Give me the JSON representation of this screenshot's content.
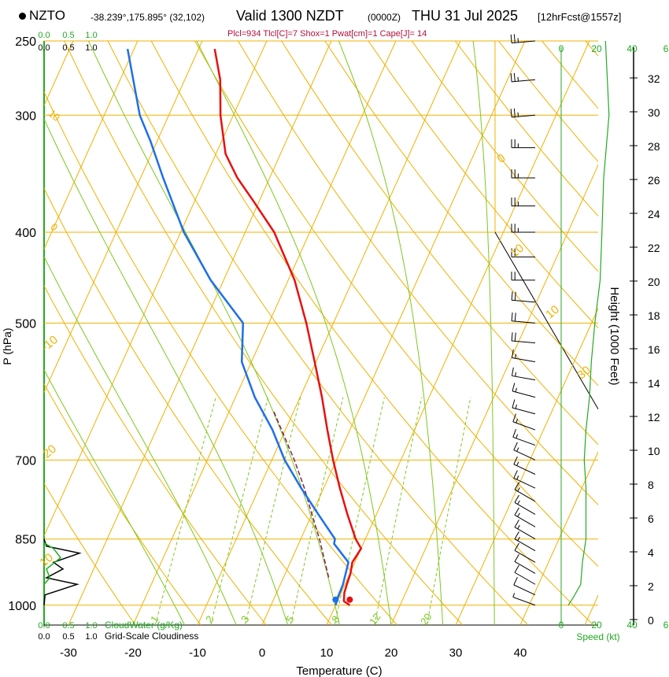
{
  "header": {
    "station": "NZTO",
    "location": "-38.239°,175.895° (32,102)",
    "valid": "Valid 1300 NZDT",
    "utc": "(0000Z)",
    "date": "THU 31 Jul 2025",
    "forecast": "[12hrFcst@1557z]",
    "params": "Plcl=934 Tlcl[C]=7 Shox=1 Pwat[cm]=1 Cape[J]= 14"
  },
  "colors": {
    "temp": "#e81010",
    "dew": "#1e6fe8",
    "isotherm": "#f0b000",
    "mixing": "#7cc81e",
    "green": "#22aa22",
    "params": "#b0103c"
  },
  "chart_data": {
    "type": "line",
    "title": "Skew-T sounding NZTO",
    "xlabel": "Temperature (C)",
    "ylabel": "P (hPa)",
    "y2label": "Height (1000 Feet)",
    "x_ticks": [
      "-30",
      "-20",
      "-10",
      "0",
      "10",
      "20",
      "30",
      "40"
    ],
    "x_tick_values": [
      -30,
      -20,
      -10,
      0,
      10,
      20,
      30,
      40
    ],
    "p_ticks": [
      "250",
      "300",
      "400",
      "500",
      "700",
      "850",
      "1000"
    ],
    "p_tick_values": [
      250,
      300,
      400,
      500,
      700,
      850,
      1000
    ],
    "height_ticks": [
      "0",
      "2",
      "4",
      "6",
      "8",
      "10",
      "12",
      "14",
      "16",
      "18",
      "20",
      "22",
      "24",
      "26",
      "28",
      "30",
      "32"
    ],
    "height_tick_values": [
      0,
      2,
      4,
      6,
      8,
      10,
      12,
      14,
      16,
      18,
      20,
      22,
      24,
      26,
      28,
      30,
      32
    ],
    "cloud_axis_labels": [
      "0.0",
      "0.5",
      "1.0"
    ],
    "cloud_water_label": "CloudWater (g/Kg)",
    "cloudiness_label": "Grid-Scale Cloudiness",
    "speed_label": "Speed (kt)",
    "speed_ticks": [
      "0",
      "20",
      "40"
    ],
    "rh_tick": "6",
    "mixing_ratio_labels": [
      "1",
      "2",
      "3",
      "5",
      "8",
      "12",
      "20"
    ],
    "isotherm_labels": [
      "0",
      "10",
      "10",
      "30",
      "-10",
      "20",
      "10"
    ],
    "temperature": [
      {
        "p": 1000,
        "t": 12.2
      },
      {
        "p": 990,
        "t": 11.0
      },
      {
        "p": 970,
        "t": 10.5
      },
      {
        "p": 950,
        "t": 10.3
      },
      {
        "p": 925,
        "t": 10.1
      },
      {
        "p": 900,
        "t": 9.6
      },
      {
        "p": 870,
        "t": 10.0
      },
      {
        "p": 850,
        "t": 8.5
      },
      {
        "p": 800,
        "t": 5.5
      },
      {
        "p": 750,
        "t": 2.5
      },
      {
        "p": 700,
        "t": -0.5
      },
      {
        "p": 650,
        "t": -3.5
      },
      {
        "p": 600,
        "t": -6.6
      },
      {
        "p": 550,
        "t": -10.2
      },
      {
        "p": 500,
        "t": -14.2
      },
      {
        "p": 450,
        "t": -19.0
      },
      {
        "p": 400,
        "t": -25.5
      },
      {
        "p": 370,
        "t": -31.0
      },
      {
        "p": 350,
        "t": -35.0
      },
      {
        "p": 330,
        "t": -38.5
      },
      {
        "p": 300,
        "t": -42.0
      },
      {
        "p": 275,
        "t": -44.5
      },
      {
        "p": 255,
        "t": -47.5
      }
    ],
    "dewpoint": [
      {
        "p": 1000,
        "t": 10.0
      },
      {
        "p": 980,
        "t": 9.8
      },
      {
        "p": 950,
        "t": 9.7
      },
      {
        "p": 900,
        "t": 9.0
      },
      {
        "p": 860,
        "t": 5.5
      },
      {
        "p": 850,
        "t": 5.3
      },
      {
        "p": 800,
        "t": 1.0
      },
      {
        "p": 750,
        "t": -3.5
      },
      {
        "p": 700,
        "t": -8.0
      },
      {
        "p": 650,
        "t": -12.0
      },
      {
        "p": 600,
        "t": -17.0
      },
      {
        "p": 550,
        "t": -21.5
      },
      {
        "p": 500,
        "t": -24.0
      },
      {
        "p": 450,
        "t": -32.0
      },
      {
        "p": 400,
        "t": -39.5
      },
      {
        "p": 350,
        "t": -46.5
      },
      {
        "p": 320,
        "t": -51.0
      },
      {
        "p": 300,
        "t": -54.5
      },
      {
        "p": 255,
        "t": -61.0
      }
    ],
    "parcel": [
      {
        "p": 934,
        "t": 7.0
      },
      {
        "p": 850,
        "t": 2.9
      },
      {
        "p": 800,
        "t": 0.0
      },
      {
        "p": 750,
        "t": -3.0
      },
      {
        "p": 700,
        "t": -6.5
      },
      {
        "p": 650,
        "t": -10.6
      },
      {
        "p": 620,
        "t": -13.2
      }
    ],
    "cloudiness": [
      {
        "p": 1000,
        "v": 0.0
      },
      {
        "p": 975,
        "v": 0.02
      },
      {
        "p": 950,
        "v": 0.7
      },
      {
        "p": 935,
        "v": 0.05
      },
      {
        "p": 915,
        "v": 0.4
      },
      {
        "p": 900,
        "v": 0.2
      },
      {
        "p": 880,
        "v": 0.75
      },
      {
        "p": 865,
        "v": 0.05
      },
      {
        "p": 850,
        "v": 0.0
      }
    ],
    "cloud_water": [
      {
        "p": 950,
        "v": 0.0
      },
      {
        "p": 935,
        "v": 0.12
      },
      {
        "p": 915,
        "v": 0.05
      },
      {
        "p": 890,
        "v": 0.35
      },
      {
        "p": 870,
        "v": 0.2
      },
      {
        "p": 858,
        "v": 0.0
      }
    ],
    "wind_speed": [
      {
        "p": 1000,
        "s": 4
      },
      {
        "p": 980,
        "s": 7
      },
      {
        "p": 950,
        "s": 11
      },
      {
        "p": 900,
        "s": 12
      },
      {
        "p": 850,
        "s": 14
      },
      {
        "p": 800,
        "s": 14
      },
      {
        "p": 750,
        "s": 14
      },
      {
        "p": 700,
        "s": 13
      },
      {
        "p": 650,
        "s": 14
      },
      {
        "p": 600,
        "s": 16
      },
      {
        "p": 550,
        "s": 17
      },
      {
        "p": 500,
        "s": 19
      },
      {
        "p": 450,
        "s": 22
      },
      {
        "p": 400,
        "s": 23
      },
      {
        "p": 350,
        "s": 24
      },
      {
        "p": 300,
        "s": 27
      },
      {
        "p": 250,
        "s": 25
      }
    ],
    "rh": [
      {
        "p": 1000,
        "v": 0.9
      },
      {
        "p": 950,
        "v": 1.0
      },
      {
        "p": 900,
        "v": 1.05
      },
      {
        "p": 850,
        "v": 0.9
      },
      {
        "p": 800,
        "v": 0.85
      },
      {
        "p": 700,
        "v": 0.8
      },
      {
        "p": 650,
        "v": 0.85
      },
      {
        "p": 600,
        "v": 0.9
      },
      {
        "p": 500,
        "v": 1.0
      },
      {
        "p": 400,
        "v": 1.25
      },
      {
        "p": 350,
        "v": 1.3
      },
      {
        "p": 300,
        "v": 1.3
      },
      {
        "p": 250,
        "v": 1.3
      }
    ],
    "barb_levels": [
      {
        "p": 1000,
        "dir": 290,
        "spd": 5
      },
      {
        "p": 975,
        "dir": 295,
        "spd": 10
      },
      {
        "p": 950,
        "dir": 300,
        "spd": 10
      },
      {
        "p": 925,
        "dir": 300,
        "spd": 10
      },
      {
        "p": 900,
        "dir": 300,
        "spd": 10
      },
      {
        "p": 875,
        "dir": 300,
        "spd": 15
      },
      {
        "p": 850,
        "dir": 300,
        "spd": 15
      },
      {
        "p": 825,
        "dir": 300,
        "spd": 15
      },
      {
        "p": 800,
        "dir": 300,
        "spd": 15
      },
      {
        "p": 775,
        "dir": 300,
        "spd": 15
      },
      {
        "p": 750,
        "dir": 295,
        "spd": 15
      },
      {
        "p": 725,
        "dir": 295,
        "spd": 15
      },
      {
        "p": 700,
        "dir": 295,
        "spd": 15
      },
      {
        "p": 675,
        "dir": 290,
        "spd": 15
      },
      {
        "p": 650,
        "dir": 290,
        "spd": 15
      },
      {
        "p": 625,
        "dir": 285,
        "spd": 15
      },
      {
        "p": 600,
        "dir": 285,
        "spd": 15
      },
      {
        "p": 575,
        "dir": 280,
        "spd": 15
      },
      {
        "p": 550,
        "dir": 280,
        "spd": 15
      },
      {
        "p": 525,
        "dir": 275,
        "spd": 20
      },
      {
        "p": 500,
        "dir": 275,
        "spd": 20
      },
      {
        "p": 475,
        "dir": 275,
        "spd": 20
      },
      {
        "p": 450,
        "dir": 270,
        "spd": 20
      },
      {
        "p": 425,
        "dir": 270,
        "spd": 20
      },
      {
        "p": 400,
        "dir": 270,
        "spd": 25
      },
      {
        "p": 375,
        "dir": 270,
        "spd": 25
      },
      {
        "p": 350,
        "dir": 270,
        "spd": 25
      },
      {
        "p": 325,
        "dir": 270,
        "spd": 25
      },
      {
        "p": 300,
        "dir": 265,
        "spd": 25
      },
      {
        "p": 275,
        "dir": 265,
        "spd": 25
      },
      {
        "p": 250,
        "dir": 265,
        "spd": 25
      }
    ]
  }
}
